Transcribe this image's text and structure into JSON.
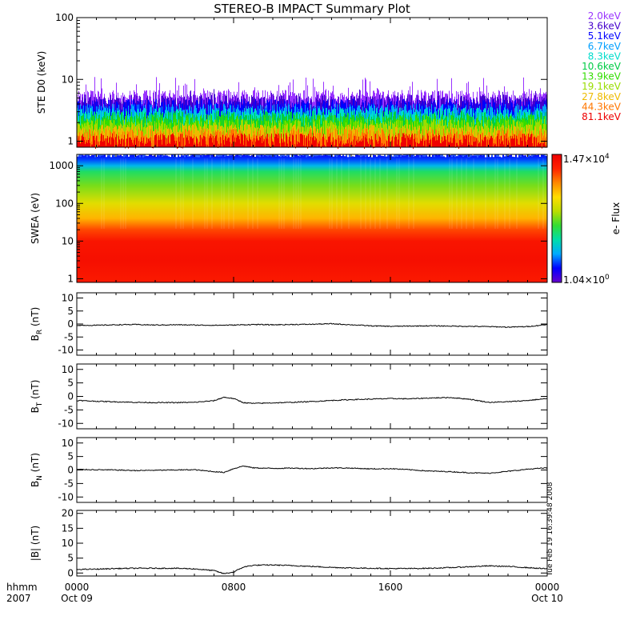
{
  "title": "STEREO-B IMPACT Summary Plot",
  "side_label": "Tue Feb 19 16:39:48 2008",
  "x_axis": {
    "header": [
      "hhmm",
      "2007"
    ],
    "ticks": [
      {
        "hour": 0,
        "label": "0000",
        "sub": "Oct 09"
      },
      {
        "hour": 8,
        "label": "0800",
        "sub": ""
      },
      {
        "hour": 16,
        "label": "1600",
        "sub": ""
      },
      {
        "hour": 24,
        "label": "0000",
        "sub": "Oct 10"
      }
    ],
    "range_hours": [
      0,
      24
    ]
  },
  "colors": {
    "ste_energies": [
      "#9933ff",
      "#4400cc",
      "#0000ff",
      "#00a0ff",
      "#00ddcc",
      "#00cc44",
      "#33dd00",
      "#99dd00",
      "#eebb00",
      "#ff7700",
      "#ee0000"
    ],
    "colorbar": [
      "#6600cc",
      "#0000ff",
      "#00aaff",
      "#00ddaa",
      "#33dd33",
      "#bbdd00",
      "#ffdd00",
      "#ff8800",
      "#ff2200",
      "#ee0000"
    ]
  },
  "chart_data": [
    {
      "type": "line",
      "panel": "STE D0",
      "ylabel": "STE D0 (keV)",
      "yscale": "log",
      "ylim": [
        0.8,
        100
      ],
      "ytick_labels": [
        "1",
        "10",
        "100"
      ],
      "legend_position": "right",
      "series_names": [
        "2.0keV",
        "3.6keV",
        "5.1keV",
        "6.7keV",
        "8.3keV",
        "10.6keV",
        "13.9keV",
        "19.1keV",
        "27.8keV",
        "44.3keV",
        "81.1keV"
      ],
      "typical_levels": [
        5.0,
        4.2,
        3.6,
        3.0,
        2.6,
        2.3,
        2.0,
        1.7,
        1.4,
        1.2,
        1.0
      ],
      "spike_max": 11
    },
    {
      "type": "heatmap",
      "panel": "SWEA",
      "ylabel": "SWEA (eV)",
      "yscale": "log",
      "ylim": [
        0.8,
        2000
      ],
      "ytick_labels": [
        "1",
        "10",
        "100",
        "1000"
      ],
      "colorbar_label": "e- Flux",
      "colorbar_range": [
        "1.04×10⁰",
        "1.47×10⁴"
      ],
      "colorbar_max_base": "1.47×10",
      "colorbar_max_exp": "4",
      "colorbar_min_base": "1.04×10",
      "colorbar_min_exp": "0",
      "energy_bands_eV": [
        1,
        3,
        10,
        20,
        40,
        100,
        300,
        700,
        1000,
        1500,
        2000
      ],
      "relative_flux_by_band": [
        0.92,
        0.95,
        0.93,
        0.85,
        0.72,
        0.62,
        0.5,
        0.4,
        0.25,
        0.15,
        0.1
      ]
    },
    {
      "type": "line",
      "panel": "BR",
      "ylabel": "B",
      "ylabel_sub": "R",
      "yunit": "(nT)",
      "ylim": [
        -12,
        12
      ],
      "ytick_labels": [
        "10",
        "5",
        "0",
        "-5",
        "-10"
      ],
      "x": [
        0,
        1,
        2,
        3,
        4,
        5,
        6,
        7,
        8,
        9,
        10,
        11,
        12,
        13,
        14,
        15,
        16,
        17,
        18,
        19,
        20,
        21,
        22,
        23,
        24
      ],
      "y": [
        -0.5,
        -0.5,
        -0.3,
        -0.2,
        -0.4,
        -0.3,
        -0.4,
        -0.5,
        -0.4,
        -0.2,
        -0.3,
        -0.2,
        -0.1,
        0.1,
        -0.3,
        -0.7,
        -0.9,
        -0.8,
        -0.7,
        -0.8,
        -0.9,
        -1.0,
        -1.2,
        -1.0,
        -0.2
      ]
    },
    {
      "type": "line",
      "panel": "BT",
      "ylabel": "B",
      "ylabel_sub": "T",
      "yunit": "(nT)",
      "ylim": [
        -12,
        12
      ],
      "ytick_labels": [
        "10",
        "5",
        "0",
        "-5",
        "-10"
      ],
      "x": [
        0,
        1,
        2,
        3,
        4,
        5,
        6,
        7,
        7.5,
        8,
        8.5,
        9,
        10,
        11,
        12,
        13,
        14,
        15,
        16,
        17,
        18,
        19,
        20,
        21,
        22,
        23,
        24
      ],
      "y": [
        -1.5,
        -1.8,
        -2.0,
        -2.2,
        -2.3,
        -2.3,
        -2.2,
        -1.6,
        -0.3,
        -0.8,
        -2.3,
        -2.6,
        -2.4,
        -2.2,
        -1.9,
        -1.5,
        -1.2,
        -1.0,
        -0.8,
        -0.9,
        -0.6,
        -0.4,
        -1.0,
        -2.2,
        -2.0,
        -1.5,
        -0.8
      ]
    },
    {
      "type": "line",
      "panel": "BN",
      "ylabel": "B",
      "ylabel_sub": "N",
      "yunit": "(nT)",
      "ylim": [
        -12,
        12
      ],
      "ytick_labels": [
        "10",
        "5",
        "0",
        "-5",
        "-10"
      ],
      "x": [
        0,
        1,
        2,
        3,
        4,
        5,
        6,
        7,
        7.5,
        8,
        8.5,
        9,
        10,
        11,
        12,
        13,
        14,
        15,
        16,
        17,
        18,
        19,
        20,
        21,
        22,
        23,
        24
      ],
      "y": [
        0.2,
        0.1,
        0.0,
        -0.2,
        -0.1,
        0.0,
        0.1,
        -0.6,
        -0.9,
        0.5,
        1.5,
        0.8,
        0.6,
        0.7,
        0.5,
        0.8,
        0.7,
        0.4,
        0.5,
        0.1,
        -0.4,
        -0.6,
        -1.0,
        -1.2,
        -0.5,
        0.3,
        0.8
      ]
    },
    {
      "type": "line",
      "panel": "|B|",
      "ylabel": "|B| (nT)",
      "ylim": [
        -1,
        21
      ],
      "ytick_labels": [
        "20",
        "15",
        "10",
        "5",
        "0"
      ],
      "x": [
        0,
        1,
        2,
        3,
        4,
        5,
        6,
        7,
        7.5,
        8,
        8.5,
        9,
        10,
        11,
        12,
        13,
        14,
        15,
        16,
        17,
        18,
        19,
        20,
        21,
        22,
        23,
        24
      ],
      "y": [
        1.2,
        1.3,
        1.5,
        1.6,
        1.6,
        1.6,
        1.4,
        0.8,
        -0.2,
        0.3,
        2.0,
        2.6,
        2.7,
        2.5,
        2.2,
        1.9,
        1.7,
        1.6,
        1.5,
        1.5,
        1.6,
        1.8,
        2.1,
        2.4,
        2.2,
        1.8,
        1.4
      ]
    }
  ]
}
